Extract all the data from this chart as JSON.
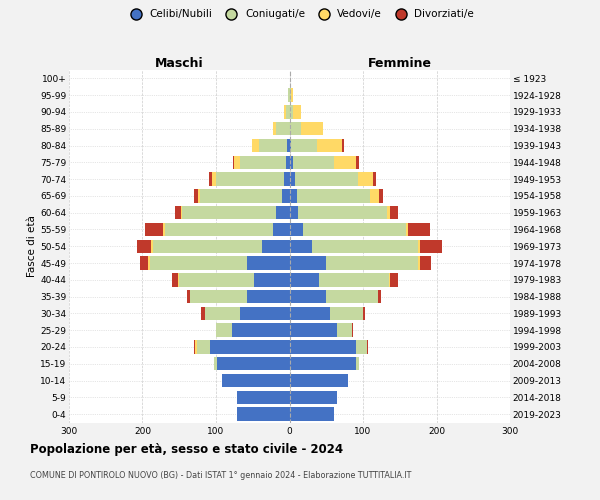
{
  "age_groups": [
    "100+",
    "95-99",
    "90-94",
    "85-89",
    "80-84",
    "75-79",
    "70-74",
    "65-69",
    "60-64",
    "55-59",
    "50-54",
    "45-49",
    "40-44",
    "35-39",
    "30-34",
    "25-29",
    "20-24",
    "15-19",
    "10-14",
    "5-9",
    "0-4"
  ],
  "birth_years": [
    "≤ 1923",
    "1924-1928",
    "1929-1933",
    "1934-1938",
    "1939-1943",
    "1944-1948",
    "1949-1953",
    "1954-1958",
    "1959-1963",
    "1964-1968",
    "1969-1973",
    "1974-1978",
    "1979-1983",
    "1984-1988",
    "1989-1993",
    "1994-1998",
    "1999-2003",
    "2004-2008",
    "2009-2013",
    "2014-2018",
    "2019-2023"
  ],
  "maschi_celibi": [
    0,
    0,
    0,
    0,
    3,
    5,
    8,
    10,
    18,
    22,
    38,
    58,
    48,
    58,
    68,
    78,
    108,
    98,
    92,
    72,
    72
  ],
  "maschi_coniugati": [
    0,
    2,
    5,
    18,
    38,
    62,
    92,
    112,
    128,
    148,
    148,
    132,
    102,
    77,
    47,
    22,
    18,
    5,
    0,
    0,
    0
  ],
  "maschi_vedovi": [
    0,
    0,
    3,
    5,
    10,
    8,
    5,
    3,
    2,
    2,
    2,
    2,
    2,
    0,
    0,
    0,
    2,
    0,
    0,
    0,
    0
  ],
  "maschi_divorziati": [
    0,
    0,
    0,
    0,
    0,
    2,
    5,
    5,
    8,
    25,
    20,
    12,
    8,
    5,
    5,
    0,
    2,
    0,
    0,
    0,
    0
  ],
  "femmine_nubili": [
    0,
    0,
    0,
    0,
    2,
    5,
    8,
    10,
    12,
    18,
    30,
    50,
    40,
    50,
    55,
    65,
    90,
    90,
    80,
    65,
    60
  ],
  "femmine_coniugate": [
    0,
    2,
    5,
    15,
    35,
    55,
    85,
    100,
    120,
    140,
    145,
    125,
    95,
    70,
    45,
    20,
    15,
    5,
    0,
    0,
    0
  ],
  "femmine_vedove": [
    1,
    3,
    10,
    30,
    35,
    30,
    20,
    12,
    5,
    3,
    2,
    2,
    2,
    0,
    0,
    0,
    0,
    0,
    0,
    0,
    0
  ],
  "femmine_divorziate": [
    0,
    0,
    0,
    0,
    2,
    5,
    5,
    5,
    10,
    30,
    30,
    15,
    10,
    5,
    3,
    2,
    2,
    0,
    0,
    0,
    0
  ],
  "color_celibi": "#4472c4",
  "color_coniugati": "#c5d9a0",
  "color_vedovi": "#ffd966",
  "color_divorziati": "#c0392b",
  "title1": "Popolazione per età, sesso e stato civile - 2024",
  "title2": "COMUNE DI PONTIROLO NUOVO (BG) - Dati ISTAT 1° gennaio 2024 - Elaborazione TUTTITALIA.IT",
  "label_maschi": "Maschi",
  "label_femmine": "Femmine",
  "label_fasce": "Fasce di età",
  "legend_labels": [
    "Celibi/Nubili",
    "Coniugati/e",
    "Vedovi/e",
    "Divorziati/e"
  ],
  "xlim": 300,
  "bg_color": "#f2f2f2",
  "plot_bg": "#ffffff",
  "grid_color": "#cccccc"
}
